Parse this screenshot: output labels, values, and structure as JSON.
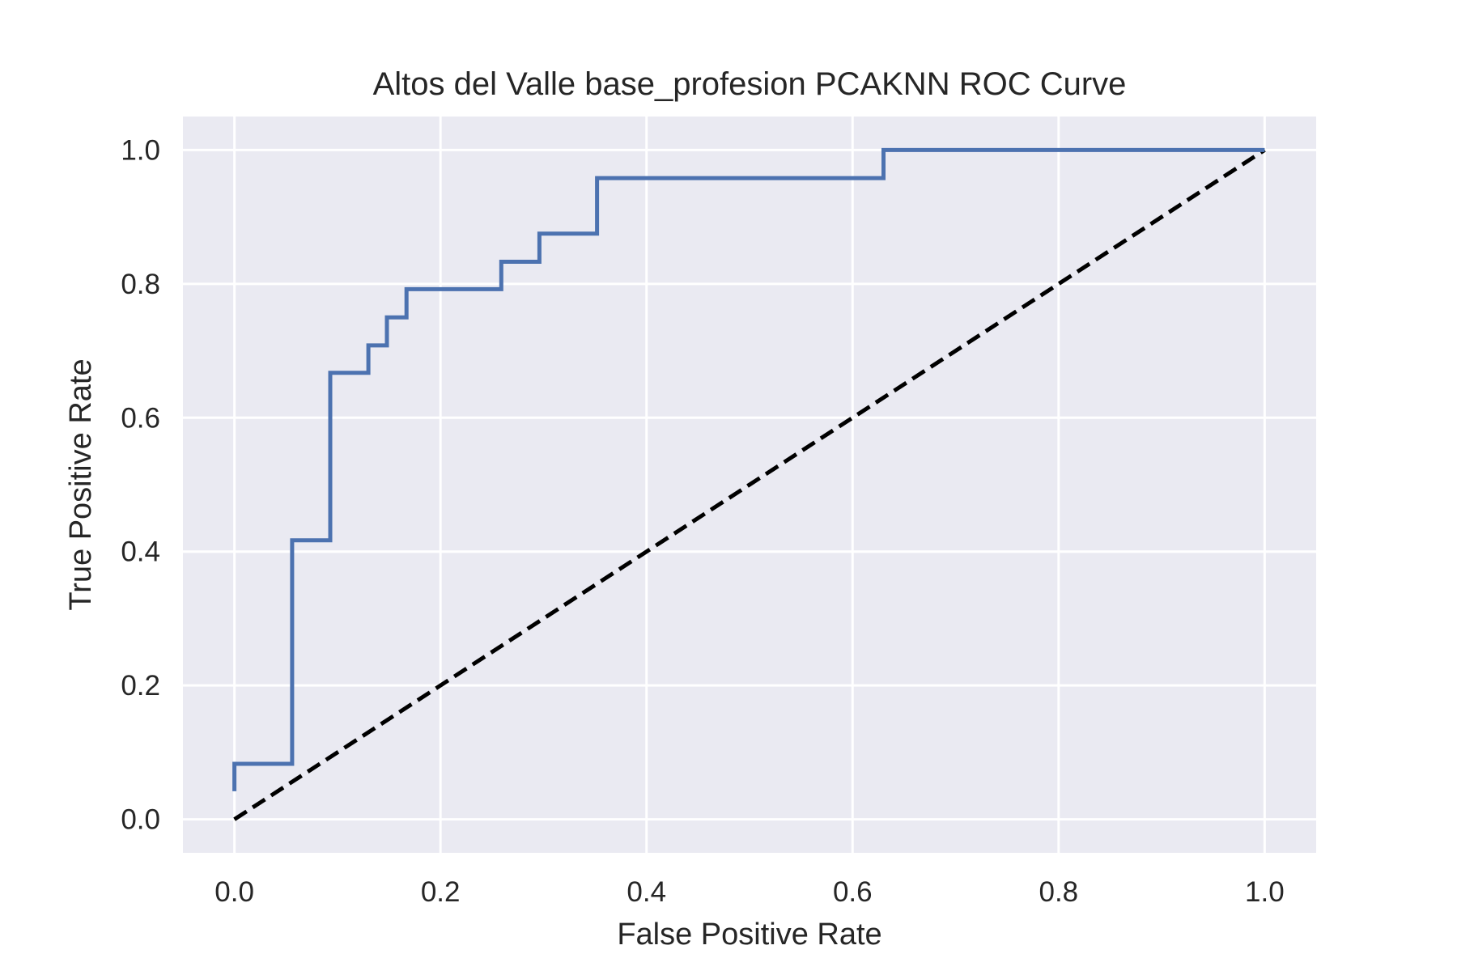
{
  "chart_data": {
    "type": "line",
    "title": "Altos del Valle base_profesion PCAKNN ROC Curve",
    "xlabel": "False Positive Rate",
    "ylabel": "True Positive Rate",
    "xlim": [
      -0.05,
      1.05
    ],
    "ylim": [
      -0.05,
      1.05
    ],
    "xticks": [
      "0.0",
      "0.2",
      "0.4",
      "0.6",
      "0.8",
      "1.0"
    ],
    "yticks": [
      "0.0",
      "0.2",
      "0.4",
      "0.6",
      "0.8",
      "1.0"
    ],
    "grid": true,
    "colors": {
      "background": "#eaeaf2",
      "grid": "#ffffff",
      "roc": "#4c72b0",
      "diagonal": "#000000"
    },
    "series": [
      {
        "style": "solid",
        "x": [
          0.0,
          0.0,
          0.056,
          0.056,
          0.093,
          0.093,
          0.13,
          0.13,
          0.148,
          0.148,
          0.167,
          0.167,
          0.259,
          0.259,
          0.296,
          0.296,
          0.352,
          0.352,
          0.63,
          0.63,
          1.0
        ],
        "y": [
          0.042,
          0.083,
          0.083,
          0.417,
          0.417,
          0.667,
          0.667,
          0.708,
          0.708,
          0.75,
          0.75,
          0.792,
          0.792,
          0.833,
          0.833,
          0.875,
          0.875,
          0.958,
          0.958,
          1.0,
          1.0
        ]
      },
      {
        "style": "dashed",
        "x": [
          0.0,
          1.0
        ],
        "y": [
          0.0,
          1.0
        ]
      }
    ]
  }
}
